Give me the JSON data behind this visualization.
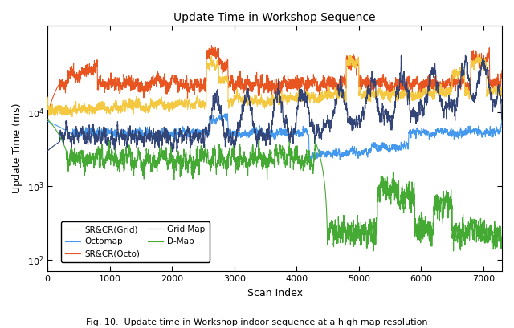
{
  "title": "Update Time in Workshop Sequence",
  "xlabel": "Scan Index",
  "ylabel": "Update Time (ms)",
  "xlim": [
    0,
    7300
  ],
  "ylim_log": [
    70,
    150000
  ],
  "xticks": [
    0,
    1000,
    2000,
    3000,
    4000,
    5000,
    6000,
    7000
  ],
  "n_scans": 7300,
  "colors": {
    "SR&CR(Grid)": "#F5C842",
    "SR&CR(Octo)": "#E85520",
    "Octomap": "#4499EE",
    "Grid Map": "#334477",
    "D-Map": "#44AA33"
  },
  "linewidth": 0.8,
  "caption": "Fig. 10.  Update time in Workshop indoor sequence at a high map resolution",
  "legend_col1": [
    "SR&CR(Grid)",
    "SR&CR(Octo)",
    "D-Map"
  ],
  "legend_col2": [
    "Octomap",
    "Grid Map"
  ]
}
